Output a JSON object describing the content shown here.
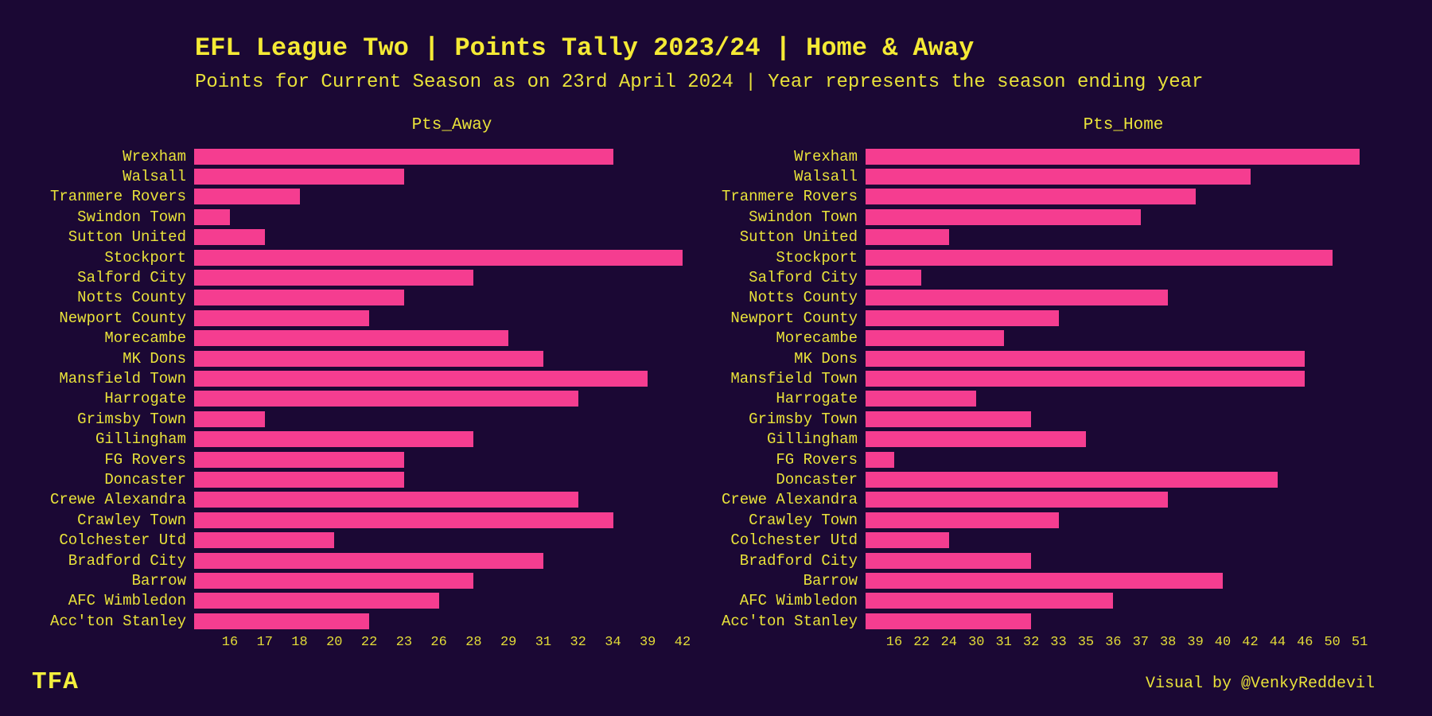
{
  "title": "EFL League Two | Points Tally 2023/24 | Home & Away",
  "subtitle": "Points for Current Season as on 23rd April 2024 | Year represents the season ending year",
  "chart_data": {
    "type": "bar",
    "orientation": "horizontal",
    "scale": "ordinal-unique-values",
    "categories": [
      "Wrexham",
      "Walsall",
      "Tranmere Rovers",
      "Swindon Town",
      "Sutton United",
      "Stockport",
      "Salford City",
      "Notts County",
      "Newport County",
      "Morecambe",
      "MK Dons",
      "Mansfield Town",
      "Harrogate",
      "Grimsby Town",
      "Gillingham",
      "FG Rovers",
      "Doncaster",
      "Crewe Alexandra",
      "Crawley Town",
      "Colchester Utd",
      "Bradford City",
      "Barrow",
      "AFC Wimbledon",
      "Acc'ton Stanley"
    ],
    "series": [
      {
        "name": "Pts_Away",
        "values": [
          34,
          23,
          18,
          16,
          17,
          42,
          28,
          23,
          22,
          29,
          31,
          39,
          32,
          17,
          28,
          23,
          23,
          32,
          34,
          20,
          31,
          28,
          26,
          22
        ]
      },
      {
        "name": "Pts_Home",
        "values": [
          51,
          42,
          39,
          37,
          24,
          50,
          22,
          38,
          33,
          31,
          46,
          46,
          30,
          32,
          35,
          16,
          44,
          38,
          33,
          24,
          32,
          40,
          36,
          32
        ]
      }
    ],
    "x_ticks": {
      "away": [
        16,
        17,
        18,
        20,
        22,
        23,
        26,
        28,
        29,
        31,
        32,
        34,
        39,
        42
      ],
      "home": [
        16,
        22,
        24,
        30,
        31,
        32,
        33,
        35,
        36,
        37,
        38,
        39,
        40,
        42,
        44,
        46,
        50,
        51
      ]
    },
    "legend_position": "none",
    "grid": false
  },
  "footer": {
    "logo": "TFA",
    "credit": "Visual by @VenkyReddevil"
  },
  "colors": {
    "background": "#1b0834",
    "bar": "#f53d90",
    "title_text": "#f5ea35",
    "text": "#e9e23a",
    "tick_text": "#e3dc38"
  }
}
